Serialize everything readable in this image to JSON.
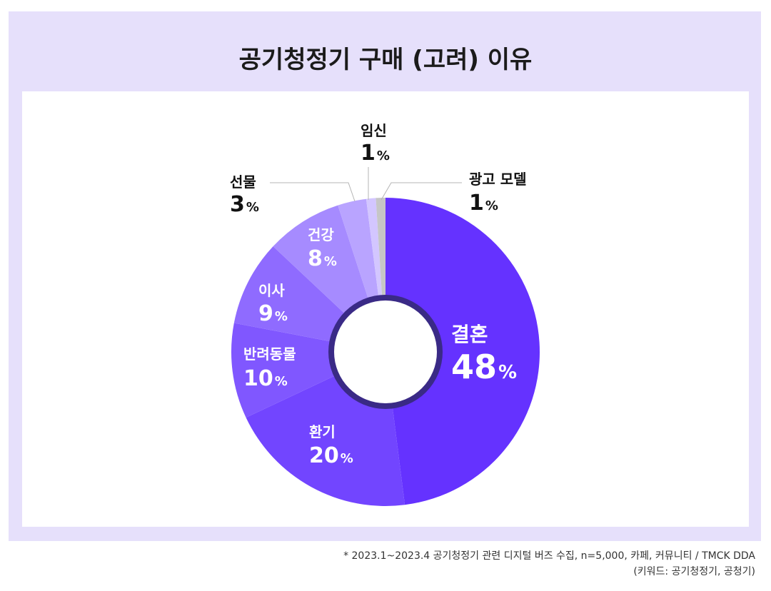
{
  "title": "공기청정기 구매 (고려) 이유",
  "footnote": {
    "line1": "* 2023.1~2023.4 공기청정기 관련 디지털 버즈 수집, n=5,000, 카페, 커뮤니티 / TMCK DDA",
    "line2": "(키워드: 공기청정기, 공청기)"
  },
  "chart_data": {
    "type": "pie",
    "donut": true,
    "title": "공기청정기 구매 (고려) 이유",
    "unit": "%",
    "slices": [
      {
        "label": "결혼",
        "value": 48,
        "color": "#6532ff"
      },
      {
        "label": "환기",
        "value": 20,
        "color": "#7245ff"
      },
      {
        "label": "반려동물",
        "value": 10,
        "color": "#8057ff"
      },
      {
        "label": "이사",
        "value": 9,
        "color": "#8f6bff"
      },
      {
        "label": "건강",
        "value": 8,
        "color": "#a68bff"
      },
      {
        "label": "선물",
        "value": 3,
        "color": "#b9a4ff"
      },
      {
        "label": "임신",
        "value": 1,
        "color": "#d3c6ff"
      },
      {
        "label": "광고 모델",
        "value": 1,
        "color": "#c6c6c6"
      }
    ]
  }
}
